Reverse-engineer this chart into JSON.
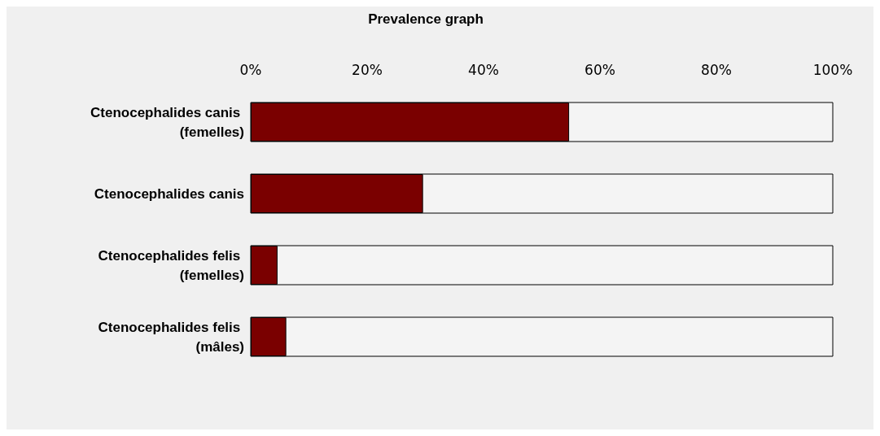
{
  "chart_data": {
    "type": "bar",
    "title": "Prevalence graph",
    "orientation": "horizontal",
    "categories": [
      "Ctenocephalides canis (femelles)",
      "Ctenocephalides canis",
      "Ctenocephalides felis (femelles)",
      "Ctenocephalides felis (mâles)"
    ],
    "values": [
      54.7,
      29.6,
      4.6,
      6.1
    ],
    "color": "#7a0000",
    "xlim": [
      0,
      100
    ],
    "xticks": [
      {
        "value": 0,
        "label": "0%"
      },
      {
        "value": 20,
        "label": "20%"
      },
      {
        "value": 40,
        "label": "40%"
      },
      {
        "value": 60,
        "label": "60%"
      },
      {
        "value": 80,
        "label": "80%"
      },
      {
        "value": 100,
        "label": "100%"
      }
    ],
    "grid": false
  }
}
